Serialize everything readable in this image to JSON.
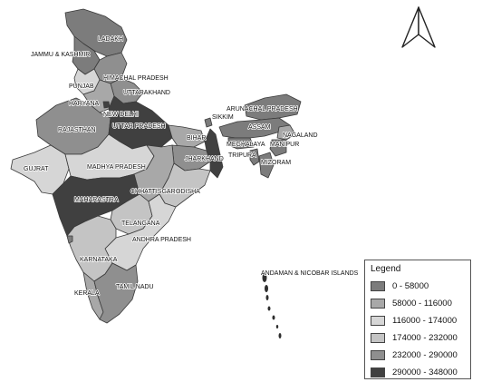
{
  "map": {
    "classes": [
      {
        "label": "0 - 58000",
        "color": "#7c7c7c"
      },
      {
        "label": "58000 - 116000",
        "color": "#a8a8a8"
      },
      {
        "label": "116000 - 174000",
        "color": "#d6d6d6"
      },
      {
        "label": "174000 - 232000",
        "color": "#c4c4c4"
      },
      {
        "label": "232000 - 290000",
        "color": "#8f8f8f"
      },
      {
        "label": "290000 - 348000",
        "color": "#404040"
      }
    ],
    "legend_title": "Legend",
    "north_arrow": "north-arrow-icon",
    "labels": {
      "ladakh": "LADAKH",
      "jk": "JAMMU & KASHMIR",
      "hp": "HIMACHAL PRADESH",
      "punjab": "PUNJAB",
      "uttarakhand": "UTTARAKHAND",
      "haryana": "HARYANA",
      "delhi": "NEW DELHI",
      "up": "UTTAR PRADESH",
      "rajasthan": "RAJASTHAN",
      "bihar": "BIHAR",
      "sikkim": "SIKKIM",
      "arunachal": "ARUNACHAL PRADESH",
      "assam": "ASSAM",
      "nagaland": "NAGALAND",
      "meghalaya": "MEGHALAYA",
      "manipur": "MANIPUR",
      "tripura": "TRIPURA",
      "mizoram": "MIZORAM",
      "jharkhand": "JHARKHAND",
      "gujrat": "GUJRAT",
      "mp": "MADHYA PRADESH",
      "chhattisgarh": "CHHATTISGARH",
      "odisha": "ODISHA",
      "maharastra": "MAHARASTRA",
      "telangana": "TELANGANA",
      "ap": "ANDHRA PRADESH",
      "karnataka": "KARNATAKA",
      "kerala": "KERALA",
      "tn": "TAMIL NADU",
      "andaman": "ANDAMAN & NICOBAR ISLANDS"
    }
  }
}
